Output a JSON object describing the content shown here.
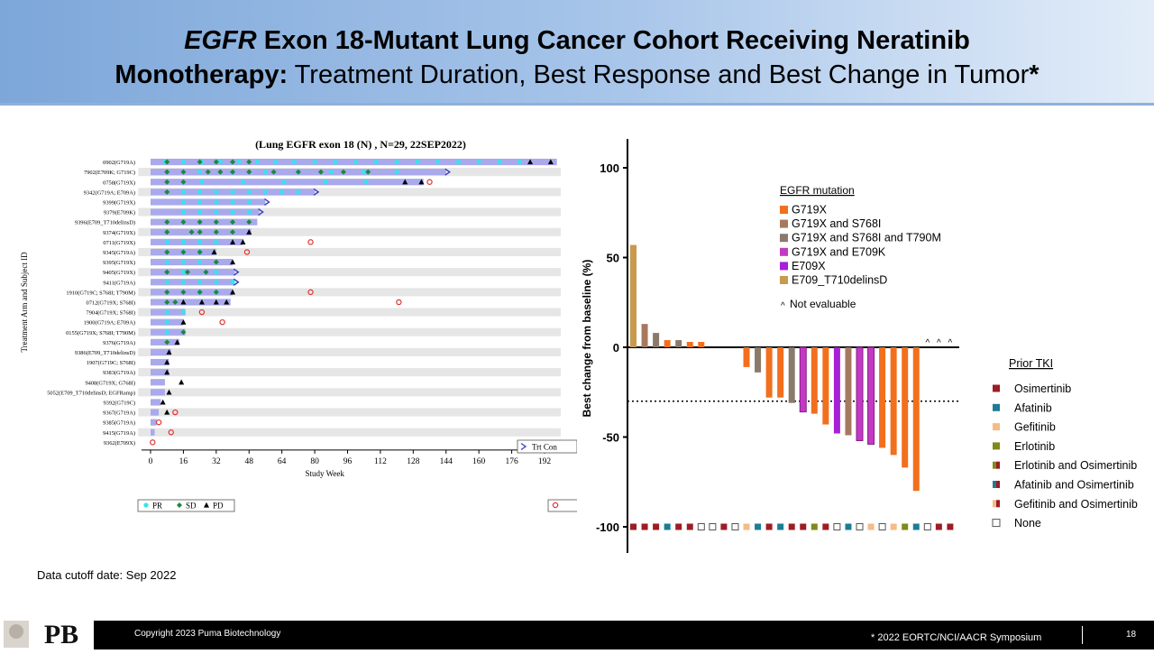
{
  "header": {
    "title_italic": "EGFR",
    "title_bold_1": " Exon 18-Mutant Lung Cancer Cohort Receiving Neratinib",
    "title_bold_2": "Monotherapy:",
    "title_regular": " Treatment Duration, Best Response and Best Change in Tumor",
    "title_asterisk": "*"
  },
  "footer": {
    "cutoff": "Data cutoff date: Sep 2022",
    "copyright": "Copyright  2023 Puma  Biotechnology",
    "conference": "* 2022 EORTC/NCI/AACR Symposium",
    "page": "18",
    "logo_text": "PB"
  },
  "colors": {
    "bar": "#a9a9ec",
    "row_shade": "#e6e6e6",
    "pr": "#33e5ef",
    "sd": "#1a8a3a",
    "pd": "#000000",
    "death": "#e0312f",
    "arrow": "#3a3ac4",
    "G719X": "#f26f1d",
    "G719X_S768I": "#a6795e",
    "G719X_S768I_T790M": "#8a7a6c",
    "G719X_E709K": "#c23ac3",
    "E709X": "#a81fd8",
    "E709_T710delinsD": "#c79a4e"
  },
  "chart_data": [
    {
      "type": "swimmer",
      "title": "(Lung EGFR exon 18 (N) , N=29, 22SEP2022)",
      "xlabel": "Study Week",
      "ylabel": "Treatment Arm and Subject ID",
      "xlim": [
        -6,
        198
      ],
      "xticks": [
        0,
        16,
        32,
        48,
        64,
        80,
        96,
        112,
        128,
        144,
        160,
        176,
        192
      ],
      "legend": {
        "pr": "PR",
        "sd": "SD",
        "pd": "PD",
        "ongoing": "Trt Con"
      },
      "rows": [
        {
          "id": "0902(G719A)",
          "end": 198,
          "cont": false,
          "pr": [
            7,
            16,
            25,
            34,
            43,
            52,
            61,
            70,
            80,
            90,
            100,
            110,
            120,
            130,
            140,
            150,
            160,
            170,
            180
          ],
          "sd": [
            8,
            24,
            32,
            40,
            48
          ],
          "pd": [
            185,
            195
          ],
          "death": []
        },
        {
          "id": "7902(E709K; G719C)",
          "end": 144,
          "cont": true,
          "pr": [
            24,
            40,
            56,
            72,
            88,
            104,
            120
          ],
          "sd": [
            8,
            16,
            28,
            34,
            40,
            48,
            60,
            72,
            83,
            94,
            106
          ],
          "pd": [],
          "death": []
        },
        {
          "id": "0758(G719X)",
          "end": 133,
          "cont": false,
          "pr": [
            25,
            45,
            65,
            85,
            105
          ],
          "sd": [
            8,
            16
          ],
          "pd": [
            124,
            132
          ],
          "death": [
            136
          ]
        },
        {
          "id": "9342(G719A; E709A)",
          "end": 80,
          "cont": true,
          "pr": [
            16,
            24,
            32,
            40,
            48,
            56,
            64,
            72
          ],
          "sd": [
            8
          ],
          "pd": [],
          "death": []
        },
        {
          "id": "9399(G719X)",
          "end": 56,
          "cont": true,
          "pr": [
            16,
            24,
            32,
            40,
            48
          ],
          "sd": [],
          "pd": [],
          "death": []
        },
        {
          "id": "9379(E709K)",
          "end": 53,
          "cont": true,
          "pr": [
            16,
            24,
            32,
            40,
            48
          ],
          "sd": [],
          "pd": [],
          "death": []
        },
        {
          "id": "9396(E709_T710delinsD)",
          "end": 52,
          "cont": false,
          "pr": [],
          "sd": [
            8,
            16,
            24,
            32,
            40,
            48
          ],
          "pd": [],
          "death": []
        },
        {
          "id": "9374(G719X)",
          "end": 49,
          "cont": false,
          "pr": [],
          "sd": [
            8,
            20,
            24,
            32,
            40
          ],
          "pd": [
            48
          ],
          "death": []
        },
        {
          "id": "0711(G719X)",
          "end": 45,
          "cont": false,
          "pr": [
            8,
            16,
            24,
            32
          ],
          "sd": [],
          "pd": [
            40,
            45
          ],
          "death": [
            78
          ]
        },
        {
          "id": "9345(G719A)",
          "end": 32,
          "cont": false,
          "pr": [
            16,
            24
          ],
          "sd": [
            8,
            16,
            24
          ],
          "pd": [
            31
          ],
          "death": [
            47
          ]
        },
        {
          "id": "9395(G719X)",
          "end": 40,
          "cont": false,
          "pr": [
            8,
            16,
            24
          ],
          "sd": [
            32
          ],
          "pd": [
            40
          ],
          "death": []
        },
        {
          "id": "9405(G719X)",
          "end": 41,
          "cont": true,
          "pr": [
            16,
            32
          ],
          "sd": [
            8,
            18,
            27
          ],
          "pd": [],
          "death": []
        },
        {
          "id": "9411(G719A)",
          "end": 41,
          "cont": true,
          "pr": [
            8,
            16,
            24,
            32,
            40
          ],
          "sd": [],
          "pd": [],
          "death": []
        },
        {
          "id": "1910(G719C; S768I; T790M)",
          "end": 40,
          "cont": false,
          "pr": [
            24,
            32
          ],
          "sd": [
            8,
            16,
            24,
            32
          ],
          "pd": [
            40
          ],
          "death": [
            78
          ]
        },
        {
          "id": "0712(G719X; S768I)",
          "end": 39,
          "cont": false,
          "pr": [],
          "sd": [
            8,
            12
          ],
          "pd": [
            16,
            25,
            32,
            37
          ],
          "death": [
            121
          ]
        },
        {
          "id": "7904(G719X; S768I)",
          "end": 17,
          "cont": false,
          "pr": [
            8,
            16
          ],
          "sd": [],
          "pd": [],
          "death": [
            25
          ]
        },
        {
          "id": "1900(G719A; E709A)",
          "end": 16,
          "cont": false,
          "pr": [
            8
          ],
          "sd": [],
          "pd": [
            16
          ],
          "death": [
            35
          ]
        },
        {
          "id": "0155(G719X; S768I; T790M)",
          "end": 17,
          "cont": false,
          "pr": [
            8
          ],
          "sd": [
            16
          ],
          "pd": [],
          "death": []
        },
        {
          "id": "9376(G719A)",
          "end": 14,
          "cont": false,
          "pr": [],
          "sd": [
            8
          ],
          "pd": [
            13
          ],
          "death": []
        },
        {
          "id": "9386(E709_T710delinsD)",
          "end": 10,
          "cont": false,
          "pr": [],
          "sd": [],
          "pd": [
            9
          ],
          "death": []
        },
        {
          "id": "1907(G719C; S768I)",
          "end": 9,
          "cont": false,
          "pr": [],
          "sd": [],
          "pd": [
            8
          ],
          "death": []
        },
        {
          "id": "9383(G719A)",
          "end": 9,
          "cont": false,
          "pr": [],
          "sd": [],
          "pd": [
            8
          ],
          "death": []
        },
        {
          "id": "9408(G719X; G768I)",
          "end": 7,
          "cont": false,
          "pr": [],
          "sd": [],
          "pd": [
            15
          ],
          "death": []
        },
        {
          "id": "5052(E709_T710delinsD; EGFRamp)",
          "end": 7,
          "cont": false,
          "pr": [],
          "sd": [],
          "pd": [
            9
          ],
          "death": []
        },
        {
          "id": "9392(G719C)",
          "end": 5,
          "cont": false,
          "pr": [],
          "sd": [],
          "pd": [
            6
          ],
          "death": []
        },
        {
          "id": "9367(G719A)",
          "end": 4,
          "cont": false,
          "pr": [],
          "sd": [],
          "pd": [
            8
          ],
          "death": [
            12
          ]
        },
        {
          "id": "9385(G719A)",
          "end": 3,
          "cont": false,
          "pr": [],
          "sd": [],
          "pd": [],
          "death": [
            4
          ]
        },
        {
          "id": "9415(G719A)",
          "end": 2,
          "cont": false,
          "pr": [],
          "sd": [],
          "pd": [],
          "death": [
            10
          ]
        },
        {
          "id": "9362(E709X)",
          "end": 0,
          "cont": false,
          "pr": [],
          "sd": [],
          "pd": [],
          "death": [
            1
          ]
        }
      ]
    },
    {
      "type": "bar",
      "title": "",
      "xlabel": "",
      "ylabel": "Best change from baseline (%)",
      "ylim": [
        -115,
        115
      ],
      "yticks": [
        100,
        50,
        0,
        -50,
        -100
      ],
      "reference_line": -30,
      "legend_title": "EGFR mutation",
      "mutation_legend": [
        {
          "key": "G719X",
          "label": "G719X"
        },
        {
          "key": "G719X_S768I",
          "label": "G719X and S768I"
        },
        {
          "key": "G719X_S768I_T790M",
          "label": "G719X and S768I and T790M"
        },
        {
          "key": "G719X_E709K",
          "label": "G719X and E709K"
        },
        {
          "key": "E709X",
          "label": "E709X"
        },
        {
          "key": "E709_T710delinsD",
          "label": "E709_T710delinsD"
        }
      ],
      "not_evaluable_symbol": "^",
      "not_evaluable_label": "Not evaluable",
      "bars": [
        {
          "value": 57,
          "mutation": "E709_T710delinsD",
          "tki": "#9e1c24"
        },
        {
          "value": 13,
          "mutation": "G719X_S768I",
          "tki": "#9e1c24"
        },
        {
          "value": 8,
          "mutation": "G719X_S768I_T790M",
          "tki": "#9e1c24"
        },
        {
          "value": 4,
          "mutation": "G719X",
          "tki": "#1d7d96"
        },
        {
          "value": 4,
          "mutation": "G719X_S768I_T790M",
          "tki": "#9e1c24"
        },
        {
          "value": 3,
          "mutation": "G719X",
          "tki": "#9e1c24"
        },
        {
          "value": 3,
          "mutation": "G719X",
          "tki": "none"
        },
        {
          "value": 0,
          "mutation": "G719X",
          "tki": "none"
        },
        {
          "value": 0,
          "mutation": "G719X",
          "tki": "#9e1c24"
        },
        {
          "value": 0,
          "mutation": "G719X",
          "tki": "none"
        },
        {
          "value": -11,
          "mutation": "G719X",
          "tki": "#f6bb86"
        },
        {
          "value": -14,
          "mutation": "G719X_S768I_T790M",
          "tki": "#1d7d96"
        },
        {
          "value": -28,
          "mutation": "G719X",
          "tki": "#9e1c24"
        },
        {
          "value": -28,
          "mutation": "G719X",
          "tki": "#1d7d96"
        },
        {
          "value": -31,
          "mutation": "G719X_S768I_T790M",
          "tki": "#9e1c24"
        },
        {
          "value": -36,
          "mutation": "G719X_E709K",
          "tki": "#9e1c24"
        },
        {
          "value": -37,
          "mutation": "G719X",
          "tki": "#7f8a1c"
        },
        {
          "value": -43,
          "mutation": "G719X",
          "tki": "#9e1c24"
        },
        {
          "value": -48,
          "mutation": "E709X",
          "tki": "none"
        },
        {
          "value": -49,
          "mutation": "G719X_S768I",
          "tki": "#1d7d96"
        },
        {
          "value": -52,
          "mutation": "G719X_E709K",
          "tki": "none"
        },
        {
          "value": -54,
          "mutation": "G719X_E709K",
          "tki": "#f6bb86"
        },
        {
          "value": -56,
          "mutation": "G719X",
          "tki": "none"
        },
        {
          "value": -60,
          "mutation": "G719X",
          "tki": "#f6bb86"
        },
        {
          "value": -67,
          "mutation": "G719X",
          "tki": "#7f8a1c"
        },
        {
          "value": -80,
          "mutation": "G719X",
          "tki": "#1d7d96"
        },
        {
          "value": null,
          "mutation": null,
          "tki": "none"
        },
        {
          "value": null,
          "mutation": null,
          "tki": "#9e1c24"
        },
        {
          "value": null,
          "mutation": null,
          "tki": "#9e1c24"
        }
      ],
      "tki_legend_title": "Prior TKI",
      "tki_legend": [
        {
          "label": "Osimertinib",
          "c1": "#9e1c24",
          "c2": "#9e1c24"
        },
        {
          "label": "Afatinib",
          "c1": "#1d7d96",
          "c2": "#1d7d96"
        },
        {
          "label": "Gefitinib",
          "c1": "#f6bb86",
          "c2": "#f6bb86"
        },
        {
          "label": "Erlotinib",
          "c1": "#7f8a1c",
          "c2": "#7f8a1c"
        },
        {
          "label": "Erlotinib and Osimertinib",
          "c1": "#7f8a1c",
          "c2": "#9e1c24"
        },
        {
          "label": "Afatinib and Osimertinib",
          "c1": "#1d7d96",
          "c2": "#9e1c24"
        },
        {
          "label": "Gefitinib and Osimertinib",
          "c1": "#f6bb86",
          "c2": "#9e1c24"
        },
        {
          "label": "None",
          "c1": "none",
          "c2": "none"
        }
      ]
    }
  ]
}
